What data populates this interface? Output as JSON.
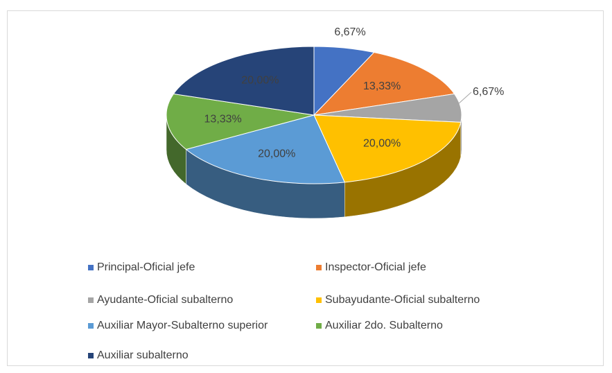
{
  "chart_data": {
    "type": "pie",
    "categories": [
      "Principal-Oficial jefe",
      "Inspector-Oficial jefe",
      "Ayudante-Oficial subalterno",
      "Subayudante-Oficial subalterno",
      "Auxiliar Mayor-Subalterno superior",
      "Auxiliar 2do. Subalterno",
      "Auxiliar subalterno"
    ],
    "values": [
      6.67,
      13.33,
      6.67,
      20.0,
      20.0,
      13.33,
      20.0
    ],
    "value_labels": [
      "6,67%",
      "13,33%",
      "6,67%",
      "20,00%",
      "20,00%",
      "13,33%",
      "20,00%"
    ],
    "colors": [
      "#4472c4",
      "#ed7d31",
      "#a5a5a5",
      "#ffc000",
      "#5b9bd5",
      "#70ad47",
      "#264478"
    ],
    "legend": "bottom"
  }
}
